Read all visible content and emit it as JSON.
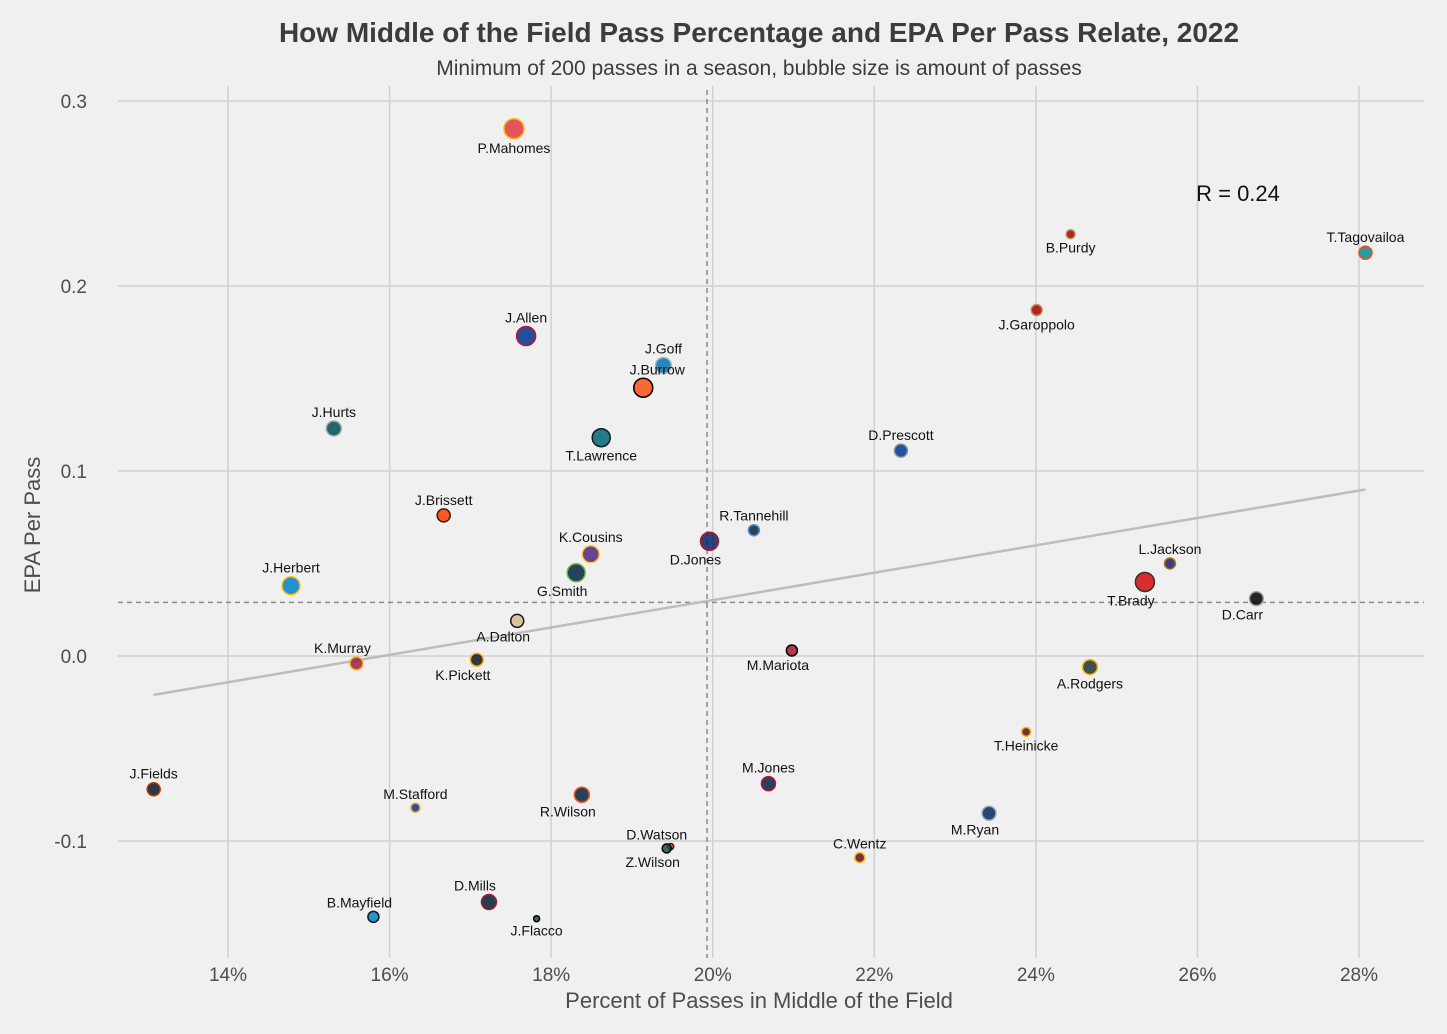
{
  "chart_data": {
    "type": "scatter",
    "title": "How Middle of the Field Pass Percentage and EPA Per Pass Relate, 2022",
    "subtitle": "Minimum of 200 passes in a season, bubble size is amount of passes",
    "xlabel": "Percent of Passes in Middle of the Field",
    "ylabel": "EPA Per Pass",
    "xlim": [
      0.1232,
      0.2885
    ],
    "ylim": [
      -0.16,
      0.307
    ],
    "x_ticks": [
      {
        "value": 0.14,
        "label": "14%"
      },
      {
        "value": 0.16,
        "label": "16%"
      },
      {
        "value": 0.18,
        "label": "18%"
      },
      {
        "value": 0.2,
        "label": "20%"
      },
      {
        "value": 0.22,
        "label": "22%"
      },
      {
        "value": 0.24,
        "label": "24%"
      },
      {
        "value": 0.26,
        "label": "26%"
      },
      {
        "value": 0.28,
        "label": "28%"
      }
    ],
    "y_ticks": [
      {
        "value": 0.3,
        "label": "0.3"
      },
      {
        "value": 0.2,
        "label": "0.2"
      },
      {
        "value": 0.1,
        "label": "0.1"
      },
      {
        "value": 0.0,
        "label": "0.0"
      },
      {
        "value": -0.1,
        "label": "-0.1"
      }
    ],
    "grid": true,
    "reference_lines": {
      "x_mean": 0.1993,
      "y_mean": 0.029
    },
    "trendline": {
      "x": [
        0.1308,
        0.2808
      ],
      "y": [
        -0.021,
        0.09
      ]
    },
    "annotation": "R = 0.24",
    "points": [
      {
        "name": "P.Mahomes",
        "x": 0.1754,
        "y": 0.285,
        "r": 10,
        "color": "#e03a3e",
        "stroke": "#ffb612",
        "label_pos": "below"
      },
      {
        "name": "B.Purdy",
        "x": 0.2443,
        "y": 0.228,
        "r": 4.5,
        "color": "#aa0000",
        "stroke": "#b3995d",
        "label_pos": "below"
      },
      {
        "name": "T.Tagovailoa",
        "x": 0.2808,
        "y": 0.218,
        "r": 6.5,
        "color": "#008e97",
        "stroke": "#fc4c02",
        "label_pos": "above"
      },
      {
        "name": "J.Garoppolo",
        "x": 0.2401,
        "y": 0.187,
        "r": 5.5,
        "color": "#aa0000",
        "stroke": "#b3995d",
        "label_pos": "below"
      },
      {
        "name": "J.Allen",
        "x": 0.1769,
        "y": 0.173,
        "r": 9.5,
        "color": "#00338d",
        "stroke": "#c60c30",
        "label_pos": "above"
      },
      {
        "name": "J.Goff",
        "x": 0.1939,
        "y": 0.157,
        "r": 8,
        "color": "#0076b6",
        "stroke": "#b0b7bc",
        "label_pos": "above"
      },
      {
        "name": "J.Burrow",
        "x": 0.1914,
        "y": 0.145,
        "r": 9.5,
        "color": "#fb4f14",
        "stroke": "#000000",
        "label_pos": "above-right"
      },
      {
        "name": "J.Hurts",
        "x": 0.1531,
        "y": 0.123,
        "r": 7.5,
        "color": "#004c54",
        "stroke": "#a5acaf",
        "label_pos": "above"
      },
      {
        "name": "T.Lawrence",
        "x": 0.1862,
        "y": 0.118,
        "r": 9,
        "color": "#006778",
        "stroke": "#101820",
        "label_pos": "below"
      },
      {
        "name": "D.Prescott",
        "x": 0.2233,
        "y": 0.111,
        "r": 6.5,
        "color": "#003594",
        "stroke": "#869397",
        "label_pos": "above"
      },
      {
        "name": "J.Brissett",
        "x": 0.1667,
        "y": 0.076,
        "r": 6.5,
        "color": "#ff3c00",
        "stroke": "#311d00",
        "label_pos": "above"
      },
      {
        "name": "R.Tannehill",
        "x": 0.2051,
        "y": 0.068,
        "r": 5.5,
        "color": "#0c2340",
        "stroke": "#4b92db",
        "label_pos": "above"
      },
      {
        "name": "D.Jones",
        "x": 0.1996,
        "y": 0.062,
        "r": 9,
        "color": "#0b2265",
        "stroke": "#a71930",
        "label_pos": "below-left"
      },
      {
        "name": "K.Cousins",
        "x": 0.1849,
        "y": 0.055,
        "r": 8.5,
        "color": "#4f2683",
        "stroke": "#ffc62f",
        "label_pos": "above"
      },
      {
        "name": "L.Jackson",
        "x": 0.2566,
        "y": 0.05,
        "r": 5.5,
        "color": "#241773",
        "stroke": "#9e7c0c",
        "label_pos": "above"
      },
      {
        "name": "G.Smith",
        "x": 0.1831,
        "y": 0.045,
        "r": 9,
        "color": "#002244",
        "stroke": "#69be28",
        "label_pos": "below-left"
      },
      {
        "name": "T.Brady",
        "x": 0.2535,
        "y": 0.04,
        "r": 9.5,
        "color": "#d50a0a",
        "stroke": "#34302b",
        "label_pos": "below-left"
      },
      {
        "name": "J.Herbert",
        "x": 0.1478,
        "y": 0.038,
        "r": 9,
        "color": "#0080c6",
        "stroke": "#ffc20e",
        "label_pos": "above"
      },
      {
        "name": "D.Carr",
        "x": 0.2673,
        "y": 0.031,
        "r": 7,
        "color": "#000000",
        "stroke": "#a5acaf",
        "label_pos": "below-left"
      },
      {
        "name": "A.Dalton",
        "x": 0.1758,
        "y": 0.019,
        "r": 6.5,
        "color": "#d3bc8d",
        "stroke": "#101820",
        "label_pos": "below-left"
      },
      {
        "name": "M.Mariota",
        "x": 0.2098,
        "y": 0.003,
        "r": 5.5,
        "color": "#a71930",
        "stroke": "#000000",
        "label_pos": "below-left"
      },
      {
        "name": "K.Murray",
        "x": 0.1559,
        "y": -0.004,
        "r": 6.5,
        "color": "#97233f",
        "stroke": "#ffb612",
        "label_pos": "above-left"
      },
      {
        "name": "K.Pickett",
        "x": 0.1708,
        "y": -0.002,
        "r": 6.5,
        "color": "#101820",
        "stroke": "#ffb612",
        "label_pos": "below-left"
      },
      {
        "name": "A.Rodgers",
        "x": 0.2467,
        "y": -0.006,
        "r": 7.5,
        "color": "#203731",
        "stroke": "#ffb612",
        "label_pos": "below"
      },
      {
        "name": "T.Heinicke",
        "x": 0.2388,
        "y": -0.041,
        "r": 4.5,
        "color": "#5a1414",
        "stroke": "#ffb612",
        "label_pos": "below"
      },
      {
        "name": "M.Jones",
        "x": 0.2069,
        "y": -0.069,
        "r": 7,
        "color": "#002244",
        "stroke": "#c60c30",
        "label_pos": "above"
      },
      {
        "name": "J.Fields",
        "x": 0.1308,
        "y": -0.072,
        "r": 6.5,
        "color": "#0b162a",
        "stroke": "#c83803",
        "label_pos": "above"
      },
      {
        "name": "R.Wilson",
        "x": 0.1838,
        "y": -0.075,
        "r": 7.5,
        "color": "#002244",
        "stroke": "#fb4f14",
        "label_pos": "below-left"
      },
      {
        "name": "M.Stafford",
        "x": 0.1632,
        "y": -0.082,
        "r": 4.5,
        "color": "#003594",
        "stroke": "#ffa300",
        "label_pos": "above"
      },
      {
        "name": "M.Ryan",
        "x": 0.2342,
        "y": -0.085,
        "r": 7,
        "color": "#002c5f",
        "stroke": "#a2aaad",
        "label_pos": "below-left"
      },
      {
        "name": "D.Watson",
        "x": 0.1948,
        "y": -0.103,
        "r": 3,
        "color": "#ff3c00",
        "stroke": "#311d00",
        "label_pos": "above-left"
      },
      {
        "name": "Z.Wilson",
        "x": 0.1943,
        "y": -0.104,
        "r": 4.5,
        "color": "#125740",
        "stroke": "#000000",
        "label_pos": "below-left"
      },
      {
        "name": "C.Wentz",
        "x": 0.2182,
        "y": -0.109,
        "r": 5,
        "color": "#5a1414",
        "stroke": "#ffb612",
        "label_pos": "above"
      },
      {
        "name": "D.Mills",
        "x": 0.1723,
        "y": -0.133,
        "r": 7.5,
        "color": "#03202f",
        "stroke": "#a71930",
        "label_pos": "above-left"
      },
      {
        "name": "B.Mayfield",
        "x": 0.158,
        "y": -0.141,
        "r": 5.5,
        "color": "#0085ca",
        "stroke": "#101820",
        "label_pos": "above-left"
      },
      {
        "name": "J.Flacco",
        "x": 0.1782,
        "y": -0.142,
        "r": 3,
        "color": "#125740",
        "stroke": "#000000",
        "label_pos": "below"
      }
    ]
  }
}
